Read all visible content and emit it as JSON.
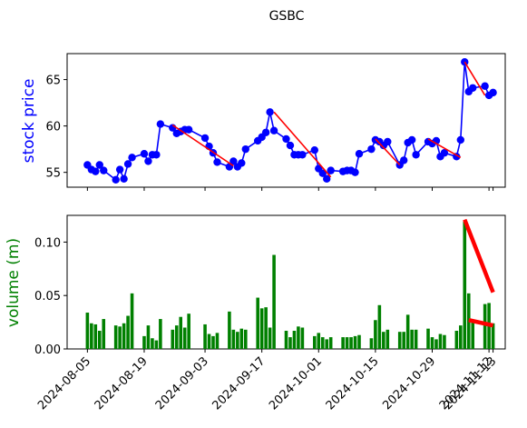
{
  "chart_data": [
    {
      "type": "line",
      "title": "GSBC",
      "xlabel": "",
      "ylabel": "stock price",
      "ylim": [
        53.4,
        67.8
      ],
      "yticks": [
        55,
        60,
        65
      ],
      "x": [
        "2024-08-05",
        "2024-08-06",
        "2024-08-07",
        "2024-08-08",
        "2024-08-09",
        "2024-08-12",
        "2024-08-13",
        "2024-08-14",
        "2024-08-15",
        "2024-08-16",
        "2024-08-19",
        "2024-08-20",
        "2024-08-21",
        "2024-08-22",
        "2024-08-23",
        "2024-08-26",
        "2024-08-27",
        "2024-08-28",
        "2024-08-29",
        "2024-08-30",
        "2024-09-03",
        "2024-09-04",
        "2024-09-05",
        "2024-09-06",
        "2024-09-09",
        "2024-09-10",
        "2024-09-11",
        "2024-09-12",
        "2024-09-13",
        "2024-09-16",
        "2024-09-17",
        "2024-09-18",
        "2024-09-19",
        "2024-09-20",
        "2024-09-23",
        "2024-09-24",
        "2024-09-25",
        "2024-09-26",
        "2024-09-27",
        "2024-09-30",
        "2024-10-01",
        "2024-10-02",
        "2024-10-03",
        "2024-10-04",
        "2024-10-07",
        "2024-10-08",
        "2024-10-09",
        "2024-10-10",
        "2024-10-11",
        "2024-10-14",
        "2024-10-15",
        "2024-10-16",
        "2024-10-17",
        "2024-10-18",
        "2024-10-21",
        "2024-10-22",
        "2024-10-23",
        "2024-10-24",
        "2024-10-25",
        "2024-10-28",
        "2024-10-29",
        "2024-10-30",
        "2024-10-31",
        "2024-11-01",
        "2024-11-04",
        "2024-11-05",
        "2024-11-06",
        "2024-11-07",
        "2024-11-08",
        "2024-11-11",
        "2024-11-12",
        "2024-11-13"
      ],
      "series": [
        {
          "color": "#0000ff",
          "values": [
            55.8,
            55.3,
            55.1,
            55.8,
            55.2,
            54.2,
            55.3,
            54.3,
            55.9,
            56.6,
            57.0,
            56.2,
            56.9,
            56.9,
            60.2,
            59.8,
            59.2,
            59.4,
            59.6,
            59.6,
            58.7,
            57.8,
            57.1,
            56.1,
            55.6,
            56.2,
            55.6,
            56.0,
            57.5,
            58.4,
            58.8,
            59.3,
            61.5,
            59.5,
            58.6,
            57.9,
            56.9,
            56.9,
            56.9,
            57.4,
            55.4,
            54.9,
            54.3,
            55.2,
            55.1,
            55.2,
            55.2,
            55.0,
            57.0,
            57.5,
            58.5,
            58.3,
            57.9,
            58.3,
            55.8,
            56.3,
            58.2,
            58.5,
            56.9,
            58.3,
            58.1,
            58.4,
            56.7,
            57.1,
            56.7,
            58.5,
            66.9,
            63.7,
            64.1,
            64.3,
            63.3,
            63.6
          ]
        }
      ],
      "trend_segments": [
        {
          "color": "#ff0000",
          "from": {
            "x": "2024-08-26",
            "y": 60.1
          },
          "to": {
            "x": "2024-09-10",
            "y": 55.7
          }
        },
        {
          "color": "#ff0000",
          "from": {
            "x": "2024-09-20",
            "y": 61.5
          },
          "to": {
            "x": "2024-10-04",
            "y": 54.5
          }
        },
        {
          "color": "#ff0000",
          "from": {
            "x": "2024-10-15",
            "y": 58.6
          },
          "to": {
            "x": "2024-10-21",
            "y": 55.8
          }
        },
        {
          "color": "#ff0000",
          "from": {
            "x": "2024-10-28",
            "y": 58.6
          },
          "to": {
            "x": "2024-11-05",
            "y": 56.6
          }
        },
        {
          "color": "#ff0000",
          "from": {
            "x": "2024-11-06",
            "y": 66.9
          },
          "to": {
            "x": "2024-11-11",
            "y": 63.3
          }
        }
      ]
    },
    {
      "type": "bar",
      "title": "",
      "xlabel": "",
      "ylabel": "volume (m)",
      "ylim": [
        0,
        0.125
      ],
      "yticks": [
        "0.00",
        "0.05",
        "0.10"
      ],
      "ytick_values": [
        0,
        0.05,
        0.1
      ],
      "xticks": [
        "2024-08-05",
        "2024-08-19",
        "2024-09-03",
        "2024-09-17",
        "2024-10-01",
        "2024-10-15",
        "2024-10-29",
        "2024-11-12",
        "2024-11-13"
      ],
      "categories": [
        "2024-08-05",
        "2024-08-06",
        "2024-08-07",
        "2024-08-08",
        "2024-08-09",
        "2024-08-12",
        "2024-08-13",
        "2024-08-14",
        "2024-08-15",
        "2024-08-16",
        "2024-08-19",
        "2024-08-20",
        "2024-08-21",
        "2024-08-22",
        "2024-08-23",
        "2024-08-26",
        "2024-08-27",
        "2024-08-28",
        "2024-08-29",
        "2024-08-30",
        "2024-09-03",
        "2024-09-04",
        "2024-09-05",
        "2024-09-06",
        "2024-09-09",
        "2024-09-10",
        "2024-09-11",
        "2024-09-12",
        "2024-09-13",
        "2024-09-16",
        "2024-09-17",
        "2024-09-18",
        "2024-09-19",
        "2024-09-20",
        "2024-09-23",
        "2024-09-24",
        "2024-09-25",
        "2024-09-26",
        "2024-09-27",
        "2024-09-30",
        "2024-10-01",
        "2024-10-02",
        "2024-10-03",
        "2024-10-04",
        "2024-10-07",
        "2024-10-08",
        "2024-10-09",
        "2024-10-10",
        "2024-10-11",
        "2024-10-14",
        "2024-10-15",
        "2024-10-16",
        "2024-10-17",
        "2024-10-18",
        "2024-10-21",
        "2024-10-22",
        "2024-10-23",
        "2024-10-24",
        "2024-10-25",
        "2024-10-28",
        "2024-10-29",
        "2024-10-30",
        "2024-10-31",
        "2024-11-01",
        "2024-11-04",
        "2024-11-05",
        "2024-11-06",
        "2024-11-07",
        "2024-11-08",
        "2024-11-11",
        "2024-11-12",
        "2024-11-13"
      ],
      "series": [
        {
          "color": "#008000",
          "values": [
            0.034,
            0.024,
            0.023,
            0.017,
            0.028,
            0.022,
            0.021,
            0.024,
            0.031,
            0.052,
            0.012,
            0.022,
            0.01,
            0.008,
            0.028,
            0.018,
            0.022,
            0.03,
            0.02,
            0.033,
            0.023,
            0.014,
            0.012,
            0.015,
            0.035,
            0.018,
            0.016,
            0.019,
            0.018,
            0.048,
            0.038,
            0.039,
            0.02,
            0.088,
            0.017,
            0.011,
            0.017,
            0.021,
            0.02,
            0.012,
            0.015,
            0.011,
            0.009,
            0.011,
            0.011,
            0.011,
            0.011,
            0.012,
            0.013,
            0.01,
            0.027,
            0.041,
            0.016,
            0.018,
            0.016,
            0.016,
            0.032,
            0.018,
            0.018,
            0.019,
            0.011,
            0.009,
            0.014,
            0.013,
            0.017,
            0.022,
            0.119,
            0.052,
            0.027,
            0.042,
            0.043,
            0.024
          ]
        }
      ],
      "trend_segments": [
        {
          "color": "#ff0000",
          "from": {
            "x": "2024-11-06",
            "y": 0.121
          },
          "to": {
            "x": "2024-11-13",
            "y": 0.053
          }
        },
        {
          "color": "#ff0000",
          "from": {
            "x": "2024-11-07",
            "y": 0.027
          },
          "to": {
            "x": "2024-11-13",
            "y": 0.022
          }
        }
      ]
    }
  ]
}
